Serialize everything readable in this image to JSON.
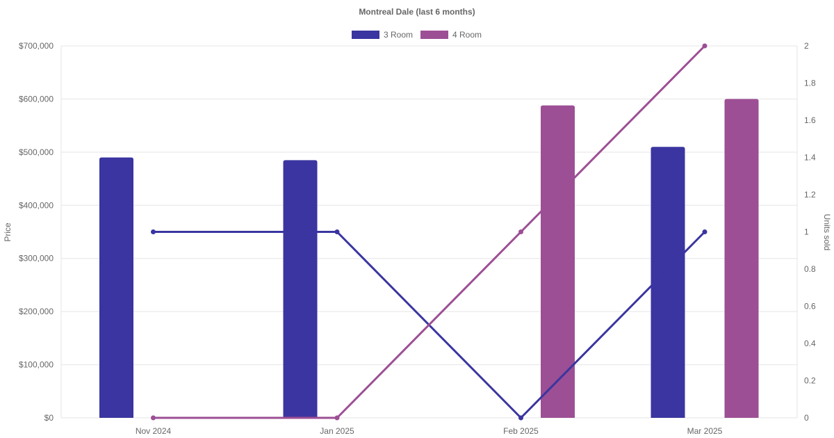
{
  "chart_data": {
    "type": "bar",
    "title": "Montreal Dale (last 6 months)",
    "categories": [
      "Nov 2024",
      "Jan 2025",
      "Feb 2025",
      "Mar 2025"
    ],
    "y_left": {
      "label": "Price",
      "range": [
        0,
        700000
      ],
      "ticks": [
        "$0",
        "$100,000",
        "$200,000",
        "$300,000",
        "$400,000",
        "$500,000",
        "$600,000",
        "$700,000"
      ]
    },
    "y_right": {
      "label": "Units sold",
      "range": [
        0,
        2
      ],
      "ticks": [
        "0",
        "0.2",
        "0.4",
        "0.6",
        "0.8",
        "1",
        "1.2",
        "1.4",
        "1.6",
        "1.8",
        "2"
      ]
    },
    "grid": true,
    "legend_position": "top",
    "series": [
      {
        "name": "3 Room",
        "color": "#3a35a0",
        "price": [
          490000,
          485000,
          null,
          510000
        ],
        "units_sold": [
          1,
          1,
          0,
          1
        ]
      },
      {
        "name": "4 Room",
        "color": "#9c4f94",
        "price": [
          null,
          null,
          588000,
          600000
        ],
        "units_sold": [
          0,
          0,
          1,
          2
        ]
      }
    ]
  }
}
